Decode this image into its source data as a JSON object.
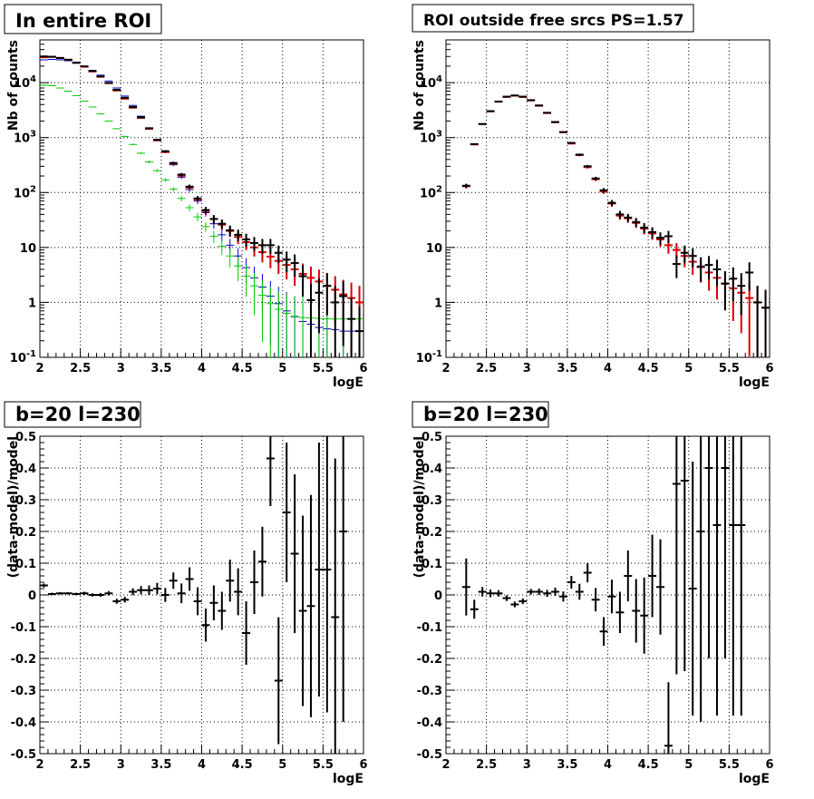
{
  "chart_data": [
    {
      "type": "scatter",
      "title": "In entire ROI",
      "xlabel": "logE",
      "ylabel": "Nb of counts",
      "xlim": [
        2,
        6
      ],
      "ylim": [
        0.1,
        60000
      ],
      "yscale": "log",
      "grid": true,
      "xticks": [
        "2",
        "2.5",
        "3",
        "3.5",
        "4",
        "4.5",
        "5",
        "5.5",
        "6"
      ],
      "yticks": [
        "10^-1",
        "1",
        "10",
        "10^2",
        "10^3",
        "10^4"
      ],
      "series": [
        {
          "color": "#0000cc",
          "x": [
            2.05,
            2.15,
            2.25,
            2.35,
            2.45,
            2.55,
            2.65,
            2.75,
            2.85,
            2.95,
            3.05,
            3.15,
            3.25,
            3.35,
            3.45,
            3.55,
            3.65,
            3.75,
            3.85,
            3.95,
            4.05,
            4.15,
            4.25,
            4.35,
            4.45,
            4.55,
            4.65,
            4.75,
            4.85,
            4.95,
            5.05,
            5.15,
            5.25,
            5.35,
            5.45,
            5.55,
            5.65,
            5.75,
            5.85,
            5.95
          ],
          "y": [
            26000,
            26500,
            26000,
            25000,
            22500,
            19800,
            16700,
            13700,
            10700,
            8000,
            5700,
            3850,
            2450,
            1500,
            900,
            540,
            320,
            190,
            113,
            70,
            43,
            27,
            17,
            11,
            7,
            4.3,
            2.8,
            1.9,
            1.3,
            0.95,
            0.7,
            0.55,
            0.45,
            0.4,
            0.35,
            0.33,
            0.32,
            0.3,
            0.3,
            0.3
          ]
        },
        {
          "color": "#00cc00",
          "x": [
            2.05,
            2.15,
            2.25,
            2.35,
            2.45,
            2.55,
            2.65,
            2.75,
            2.85,
            2.95,
            3.05,
            3.15,
            3.25,
            3.35,
            3.45,
            3.55,
            3.65,
            3.75,
            3.85,
            3.95,
            4.05,
            4.15,
            4.25,
            4.35,
            4.45,
            4.55,
            4.65,
            4.75,
            4.85,
            4.95,
            5.05,
            5.15,
            5.25,
            5.35,
            5.45,
            5.55,
            5.65,
            5.75,
            5.85,
            5.95
          ],
          "y": [
            9000,
            8800,
            8000,
            7000,
            5800,
            4600,
            3600,
            2700,
            2000,
            1450,
            1050,
            750,
            520,
            360,
            250,
            170,
            115,
            78,
            53,
            36,
            24,
            16,
            10.5,
            7,
            4.6,
            3,
            2,
            1.35,
            0.95,
            0.75,
            0.63,
            0.56,
            0.53,
            0.52,
            0.51,
            0.5,
            0.5,
            0.5,
            0.5,
            0.5
          ]
        },
        {
          "color": "#dd0000",
          "x": [
            2.05,
            2.15,
            2.25,
            2.35,
            2.45,
            2.55,
            2.65,
            2.75,
            2.85,
            2.95,
            3.05,
            3.15,
            3.25,
            3.35,
            3.45,
            3.55,
            3.65,
            3.75,
            3.85,
            3.95,
            4.05,
            4.15,
            4.25,
            4.35,
            4.45,
            4.55,
            4.65,
            4.75,
            4.85,
            4.95,
            5.05,
            5.15,
            5.25,
            5.35,
            5.45,
            5.55,
            5.65,
            5.75,
            5.85,
            5.95
          ],
          "y": [
            29000,
            29500,
            28000,
            26000,
            23000,
            19500,
            16000,
            12800,
            9800,
            7200,
            5100,
            3500,
            2280,
            1440,
            890,
            545,
            335,
            203,
            123,
            75,
            46,
            33,
            26,
            20,
            15.5,
            12.5,
            10,
            8.2,
            6.8,
            5.7,
            4.8,
            4,
            3.3,
            2.8,
            2.4,
            2,
            1.7,
            1.4,
            1.2,
            1
          ]
        },
        {
          "color": "#000000",
          "x": [
            2.05,
            2.15,
            2.25,
            2.35,
            2.45,
            2.55,
            2.65,
            2.75,
            2.85,
            2.95,
            3.05,
            3.15,
            3.25,
            3.35,
            3.45,
            3.55,
            3.65,
            3.75,
            3.85,
            3.95,
            4.05,
            4.15,
            4.25,
            4.35,
            4.45,
            4.55,
            4.65,
            4.75,
            4.85,
            4.95,
            5.05,
            5.15,
            5.25,
            5.35,
            5.45,
            5.55,
            5.65,
            5.75,
            5.85,
            5.95
          ],
          "y": [
            30000,
            29600,
            28200,
            26200,
            23200,
            19800,
            16300,
            13000,
            9900,
            7400,
            5300,
            3600,
            2350,
            1480,
            910,
            565,
            345,
            212,
            128,
            78,
            48,
            33,
            27,
            20.5,
            17,
            14,
            12,
            11,
            11,
            8,
            6,
            5.2,
            3,
            1.1,
            1.5,
            2,
            1,
            1.3,
            0.5,
            0.3
          ]
        }
      ]
    },
    {
      "type": "scatter",
      "title": "ROI outside free srcs PS=1.57",
      "xlabel": "logE",
      "ylabel": "Nb of counts",
      "xlim": [
        2,
        6
      ],
      "ylim": [
        0.1,
        60000
      ],
      "yscale": "log",
      "grid": true,
      "xticks": [
        "2",
        "2.5",
        "3",
        "3.5",
        "4",
        "4.5",
        "5",
        "5.5",
        "6"
      ],
      "yticks": [
        "10^-1",
        "1",
        "10",
        "10^2",
        "10^3",
        "10^4"
      ],
      "series": [
        {
          "color": "#dd0000",
          "x": [
            2.25,
            2.35,
            2.45,
            2.55,
            2.65,
            2.75,
            2.85,
            2.95,
            3.05,
            3.15,
            3.25,
            3.35,
            3.45,
            3.55,
            3.65,
            3.75,
            3.85,
            3.95,
            4.05,
            4.15,
            4.25,
            4.35,
            4.45,
            4.55,
            4.65,
            4.75,
            4.85,
            4.95,
            5.05,
            5.15,
            5.25,
            5.35,
            5.45,
            5.55,
            5.65,
            5.75,
            5.85,
            5.95
          ],
          "y": [
            130,
            750,
            1750,
            3000,
            4500,
            5500,
            5800,
            5500,
            4750,
            3800,
            2800,
            1900,
            1250,
            780,
            480,
            290,
            175,
            105,
            63,
            38,
            34,
            28,
            22,
            18,
            14,
            11,
            9,
            7,
            5.5,
            4.4,
            3.5,
            2.8,
            2.2,
            1.8,
            1.5,
            1.2,
            1,
            0.8
          ]
        },
        {
          "color": "#000000",
          "x": [
            2.25,
            2.35,
            2.45,
            2.55,
            2.65,
            2.75,
            2.85,
            2.95,
            3.05,
            3.15,
            3.25,
            3.35,
            3.45,
            3.55,
            3.65,
            3.75,
            3.85,
            3.95,
            4.05,
            4.15,
            4.25,
            4.35,
            4.45,
            4.55,
            4.65,
            4.75,
            4.85,
            4.95,
            5.05,
            5.15,
            5.25,
            5.35,
            5.45,
            5.55,
            5.65,
            5.75,
            5.85,
            5.95
          ],
          "y": [
            133,
            760,
            1770,
            3030,
            4530,
            5560,
            5840,
            5560,
            4800,
            3850,
            2830,
            1920,
            1260,
            800,
            490,
            300,
            180,
            110,
            65,
            40,
            35,
            29,
            23,
            19,
            15,
            16,
            5,
            8,
            7,
            4.5,
            4.8,
            4,
            2.2,
            2.7,
            2,
            3.5,
            1,
            0.8
          ]
        }
      ]
    },
    {
      "type": "scatter",
      "title": "b=20 l=230",
      "xlabel": "logE",
      "ylabel": "(data-model)/model",
      "xlim": [
        2,
        6
      ],
      "ylim": [
        -0.5,
        0.5
      ],
      "grid": true,
      "xticks": [
        "2",
        "2.5",
        "3",
        "3.5",
        "4",
        "4.5",
        "5",
        "5.5",
        "6"
      ],
      "yticks": [
        "-0.5",
        "-0.4",
        "-0.3",
        "-0.2",
        "-0.1",
        "0",
        "0.1",
        "0.2",
        "0.3",
        "0.4",
        "0.5"
      ],
      "series": [
        {
          "color": "#000000",
          "x": [
            2.05,
            2.15,
            2.25,
            2.35,
            2.45,
            2.55,
            2.65,
            2.75,
            2.85,
            2.95,
            3.05,
            3.15,
            3.25,
            3.35,
            3.45,
            3.55,
            3.65,
            3.75,
            3.85,
            3.95,
            4.05,
            4.15,
            4.25,
            4.35,
            4.45,
            4.55,
            4.65,
            4.75,
            4.85,
            4.95,
            5.05,
            5.15,
            5.25,
            5.35,
            5.45,
            5.55,
            5.65,
            5.75
          ],
          "y": [
            0.03,
            0.003,
            0.005,
            0.005,
            0.003,
            0.005,
            0,
            0,
            0.005,
            -0.02,
            -0.015,
            0.01,
            0.015,
            0.015,
            0.02,
            0,
            0.045,
            0.005,
            0.05,
            -0.02,
            -0.095,
            -0.025,
            -0.05,
            0.045,
            0.01,
            -0.12,
            0.04,
            0.105,
            0.43,
            -0.27,
            0.26,
            0.13,
            -0.05,
            -0.035,
            0.08,
            0.08,
            -0.07,
            0.2
          ],
          "err": [
            0.006,
            0.004,
            0.004,
            0.004,
            0.004,
            0.005,
            0.005,
            0.006,
            0.007,
            0.008,
            0.009,
            0.011,
            0.013,
            0.015,
            0.018,
            0.022,
            0.026,
            0.031,
            0.037,
            0.044,
            0.052,
            0.055,
            0.06,
            0.066,
            0.074,
            0.1,
            0.1,
            0.11,
            0.15,
            0.2,
            0.22,
            0.25,
            0.3,
            0.35,
            0.4,
            0.45,
            0.5,
            0.6
          ]
        }
      ]
    },
    {
      "type": "scatter",
      "title": "b=20 l=230",
      "xlabel": "logE",
      "ylabel": "(data-model)/model",
      "xlim": [
        2,
        6
      ],
      "ylim": [
        -0.5,
        0.5
      ],
      "grid": true,
      "xticks": [
        "2",
        "2.5",
        "3",
        "3.5",
        "4",
        "4.5",
        "5",
        "5.5",
        "6"
      ],
      "yticks": [
        "-0.5",
        "-0.4",
        "-0.3",
        "-0.2",
        "-0.1",
        "0",
        "0.1",
        "0.2",
        "0.3",
        "0.4",
        "0.5"
      ],
      "series": [
        {
          "color": "#000000",
          "x": [
            2.25,
            2.35,
            2.45,
            2.55,
            2.65,
            2.75,
            2.85,
            2.95,
            3.05,
            3.15,
            3.25,
            3.35,
            3.45,
            3.55,
            3.65,
            3.75,
            3.85,
            3.95,
            4.05,
            4.15,
            4.25,
            4.35,
            4.45,
            4.55,
            4.65,
            4.75,
            4.85,
            4.95,
            5.05,
            5.15,
            5.25,
            5.35,
            5.45,
            5.55,
            5.65
          ],
          "y": [
            0.025,
            -0.045,
            0.01,
            0.005,
            0.005,
            -0.01,
            -0.03,
            -0.02,
            0.01,
            0.01,
            0.005,
            0.01,
            -0.005,
            0.04,
            0.01,
            0.07,
            -0.015,
            -0.115,
            -0.005,
            -0.055,
            0.06,
            -0.05,
            -0.065,
            0.06,
            0.025,
            -0.475,
            0.35,
            0.36,
            0.02,
            0.2,
            0.4,
            0.22,
            0.4,
            0.22,
            0.22
          ],
          "err": [
            0.09,
            0.03,
            0.015,
            0.012,
            0.01,
            0.009,
            0.009,
            0.009,
            0.009,
            0.01,
            0.011,
            0.013,
            0.016,
            0.02,
            0.025,
            0.03,
            0.037,
            0.045,
            0.053,
            0.065,
            0.08,
            0.1,
            0.12,
            0.13,
            0.15,
            0.2,
            0.6,
            0.6,
            0.4,
            0.6,
            0.6,
            0.6,
            0.6,
            0.6,
            0.6
          ]
        }
      ]
    }
  ]
}
